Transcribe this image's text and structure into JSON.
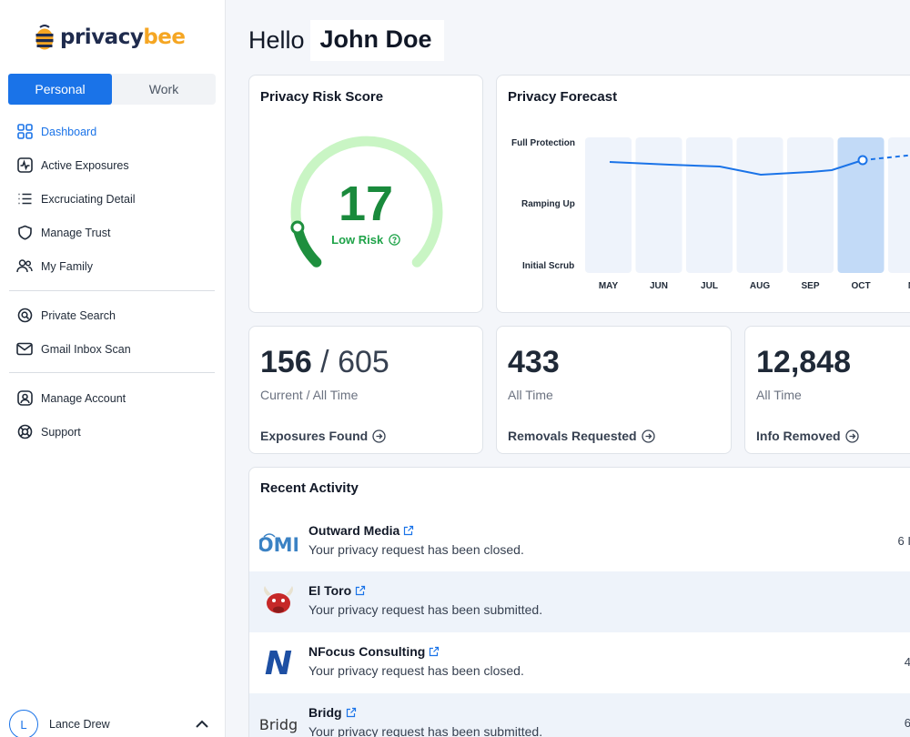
{
  "brand": {
    "part1": "privacy",
    "part2": "bee"
  },
  "mode_toggle": {
    "personal": "Personal",
    "work": "Work"
  },
  "nav_primary": [
    {
      "label": "Dashboard",
      "icon": "dashboard-icon"
    },
    {
      "label": "Active Exposures",
      "icon": "activity-icon"
    },
    {
      "label": "Excruciating Detail",
      "icon": "list-icon"
    },
    {
      "label": "Manage Trust",
      "icon": "shield-icon"
    },
    {
      "label": "My Family",
      "icon": "family-icon"
    }
  ],
  "nav_secondary": [
    {
      "label": "Private Search",
      "icon": "search-icon"
    },
    {
      "label": "Gmail Inbox Scan",
      "icon": "mail-icon"
    }
  ],
  "nav_tertiary": [
    {
      "label": "Manage Account",
      "icon": "account-icon"
    },
    {
      "label": "Support",
      "icon": "support-icon"
    }
  ],
  "user": {
    "initial": "L",
    "name": "Lance Drew"
  },
  "greeting": {
    "hello": "Hello",
    "name": "John Doe"
  },
  "risk": {
    "title": "Privacy Risk Score",
    "score": "17",
    "level": "Low Risk",
    "fraction": 0.12
  },
  "forecast": {
    "title": "Privacy Forecast",
    "levels": [
      "Full Protection",
      "Ramping Up",
      "Initial Scrub"
    ],
    "months": [
      "MAY",
      "JUN",
      "JUL",
      "AUG",
      "SEP",
      "OCT",
      "N"
    ],
    "highlight_month": "OCT"
  },
  "stats": {
    "exposures": {
      "current": "156",
      "separator": " / ",
      "total": "605",
      "sub": "Current / All Time",
      "link": "Exposures Found"
    },
    "removals": {
      "value": "433",
      "sub": "All Time",
      "link": "Removals Requested"
    },
    "info": {
      "value": "12,848",
      "sub": "All Time",
      "link": "Info Removed"
    }
  },
  "activity": {
    "title": "Recent Activity",
    "items": [
      {
        "name": "Outward Media",
        "message": "Your privacy request has been closed.",
        "time": "6 I",
        "logo_text": "OMI"
      },
      {
        "name": "El Toro",
        "message": "Your privacy request has been submitted.",
        "time": "",
        "logo_text": ""
      },
      {
        "name": "NFocus Consulting",
        "message": "Your privacy request has been closed.",
        "time": "4",
        "logo_text": "N"
      },
      {
        "name": "Bridg",
        "message": "Your privacy request has been submitted.",
        "time": "6",
        "logo_text": "Bridg"
      }
    ]
  },
  "colors": {
    "accent": "#1a73e8",
    "risk_green": "#1a8a3c",
    "brand_navy": "#1f2b4d",
    "brand_gold": "#f5a623"
  }
}
